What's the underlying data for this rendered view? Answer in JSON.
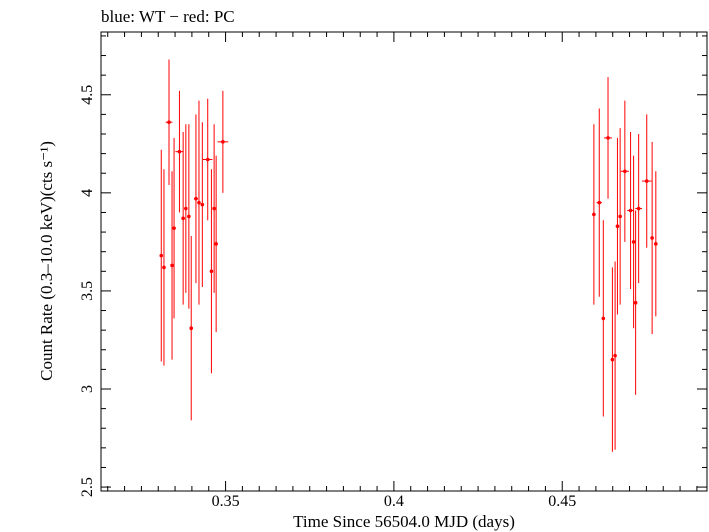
{
  "chart_data": {
    "type": "scatter",
    "title": "blue: WT − red: PC",
    "xlabel": "Time Since 56504.0 MJD (days)",
    "ylabel": "Count Rate (0.3–10.0 keV)(cts s⁻¹)",
    "xlim": [
      0.313,
      0.493
    ],
    "ylim": [
      2.48,
      4.82
    ],
    "xticks": [
      0.35,
      0.4,
      0.45
    ],
    "xtick_labels": [
      "0.35",
      "0.4",
      "0.45"
    ],
    "yticks": [
      2.5,
      3,
      3.5,
      4,
      4.5
    ],
    "ytick_labels": [
      "2.5",
      "3",
      "3.5",
      "4",
      "4.5"
    ],
    "grid": false,
    "legend": "none",
    "colors": {
      "PC": "#ff0000",
      "WT": "#0000ff",
      "axes": "#000000"
    },
    "series": [
      {
        "name": "PC",
        "color": "#ff0000",
        "points": [
          {
            "x": 0.3309,
            "y": 3.68,
            "yerr": 0.54,
            "xerr": 0.0004
          },
          {
            "x": 0.3317,
            "y": 3.62,
            "yerr": 0.5,
            "xerr": 0.0004
          },
          {
            "x": 0.3332,
            "y": 4.36,
            "yerr": 0.32,
            "xerr": 0.001
          },
          {
            "x": 0.3341,
            "y": 3.63,
            "yerr": 0.48,
            "xerr": 0.0004
          },
          {
            "x": 0.3347,
            "y": 3.82,
            "yerr": 0.46,
            "xerr": 0.0004
          },
          {
            "x": 0.3363,
            "y": 4.21,
            "yerr": 0.31,
            "xerr": 0.0012
          },
          {
            "x": 0.3374,
            "y": 3.87,
            "yerr": 0.44,
            "xerr": 0.0004
          },
          {
            "x": 0.3382,
            "y": 3.92,
            "yerr": 0.43,
            "xerr": 0.0004
          },
          {
            "x": 0.3391,
            "y": 3.88,
            "yerr": 0.47,
            "xerr": 0.0004
          },
          {
            "x": 0.3398,
            "y": 3.31,
            "yerr": 0.47,
            "xerr": 0.0004
          },
          {
            "x": 0.3412,
            "y": 3.97,
            "yerr": 0.43,
            "xerr": 0.0006
          },
          {
            "x": 0.3421,
            "y": 3.95,
            "yerr": 0.52,
            "xerr": 0.0004
          },
          {
            "x": 0.3431,
            "y": 3.94,
            "yerr": 0.42,
            "xerr": 0.0004
          },
          {
            "x": 0.3447,
            "y": 4.17,
            "yerr": 0.31,
            "xerr": 0.0014
          },
          {
            "x": 0.3458,
            "y": 3.6,
            "yerr": 0.52,
            "xerr": 0.0004
          },
          {
            "x": 0.3466,
            "y": 3.92,
            "yerr": 0.43,
            "xerr": 0.0004
          },
          {
            "x": 0.3472,
            "y": 3.74,
            "yerr": 0.45,
            "xerr": 0.0004
          },
          {
            "x": 0.3492,
            "y": 4.26,
            "yerr": 0.26,
            "xerr": 0.0016
          },
          {
            "x": 0.4594,
            "y": 3.89,
            "yerr": 0.46,
            "xerr": 0.0004
          },
          {
            "x": 0.461,
            "y": 3.95,
            "yerr": 0.48,
            "xerr": 0.0008
          },
          {
            "x": 0.4622,
            "y": 3.36,
            "yerr": 0.5,
            "xerr": 0.0004
          },
          {
            "x": 0.4636,
            "y": 4.28,
            "yerr": 0.31,
            "xerr": 0.0012
          },
          {
            "x": 0.4649,
            "y": 3.15,
            "yerr": 0.47,
            "xerr": 0.0004
          },
          {
            "x": 0.4657,
            "y": 3.17,
            "yerr": 0.48,
            "xerr": 0.0004
          },
          {
            "x": 0.4664,
            "y": 3.83,
            "yerr": 0.45,
            "xerr": 0.0004
          },
          {
            "x": 0.4672,
            "y": 3.88,
            "yerr": 0.45,
            "xerr": 0.0004
          },
          {
            "x": 0.4686,
            "y": 4.11,
            "yerr": 0.36,
            "xerr": 0.0012
          },
          {
            "x": 0.4703,
            "y": 3.91,
            "yerr": 0.4,
            "xerr": 0.001
          },
          {
            "x": 0.4712,
            "y": 3.75,
            "yerr": 0.44,
            "xerr": 0.0004
          },
          {
            "x": 0.4718,
            "y": 3.44,
            "yerr": 0.47,
            "xerr": 0.0004
          },
          {
            "x": 0.4727,
            "y": 3.92,
            "yerr": 0.38,
            "xerr": 0.001
          },
          {
            "x": 0.4751,
            "y": 4.06,
            "yerr": 0.34,
            "xerr": 0.0014
          },
          {
            "x": 0.4767,
            "y": 3.77,
            "yerr": 0.49,
            "xerr": 0.0004
          },
          {
            "x": 0.4778,
            "y": 3.74,
            "yerr": 0.37,
            "xerr": 0.0004
          }
        ]
      }
    ]
  }
}
